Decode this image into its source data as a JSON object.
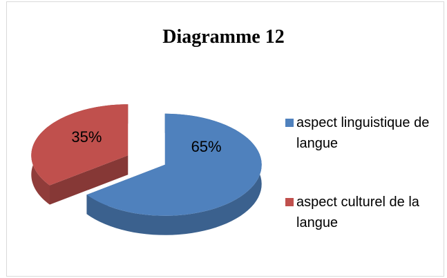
{
  "chart_data": {
    "type": "pie",
    "title": "Diagramme 12",
    "categories": [
      "aspect linguistique de langue",
      "aspect culturel de la langue"
    ],
    "values": [
      65,
      35
    ],
    "value_labels": [
      "65%",
      "35%"
    ],
    "colors": [
      "#4f81bd",
      "#c0504d"
    ],
    "legend": "right"
  }
}
